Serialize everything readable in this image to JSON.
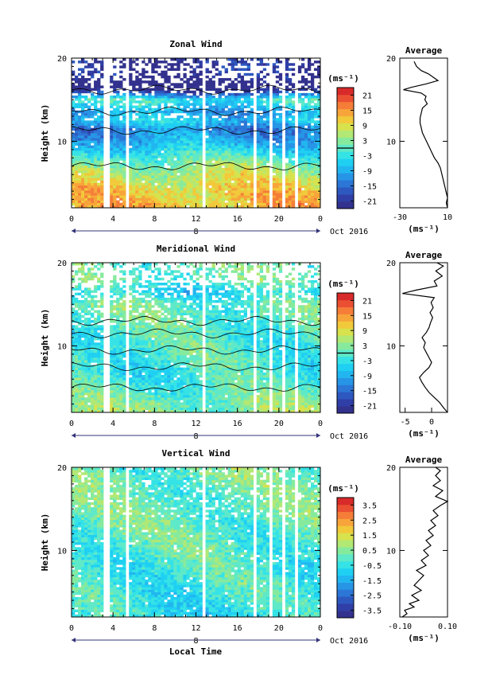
{
  "colors": {
    "jet": [
      "#32318e",
      "#2f3fa7",
      "#2d58bf",
      "#2b76d6",
      "#2795e6",
      "#21b6f0",
      "#1fd0f2",
      "#35e3e6",
      "#5ee9c8",
      "#86ea9d",
      "#b2e874",
      "#d7e24d",
      "#f1c93a",
      "#f7a53a",
      "#f57d38",
      "#ea4f32",
      "#d82a2a"
    ],
    "contour": "#000000",
    "axis_arrow": "#33337a"
  },
  "x_axis": {
    "ticks": [
      "0",
      "4",
      "8",
      "12",
      "16",
      "20",
      "0"
    ],
    "day_label": "8",
    "date_label": "Oct 2016",
    "label": "Local Time"
  },
  "chart_data": [
    {
      "type": "heatmap",
      "title": "Zonal Wind",
      "ylabel": "Height (km)",
      "yticks": [
        "20",
        "10"
      ],
      "ylim": [
        2,
        20
      ],
      "xlim": [
        0,
        24
      ],
      "unit_label": "(ms⁻¹)",
      "colorbar_ticks": [
        "21",
        "15",
        "9",
        "3",
        "-3",
        "-9",
        "-15",
        "-21"
      ],
      "colorbar_range": [
        -24,
        24
      ],
      "profile_title": "Average",
      "profile_xlabel": "(ms⁻¹)",
      "profile_xticks": [
        "-30",
        "10"
      ],
      "profile_xlim": [
        -30,
        10
      ],
      "profile_yticks": [
        "20",
        "10"
      ],
      "profile": [
        [
          10,
          2
        ],
        [
          9,
          2.6
        ],
        [
          10,
          3.2
        ],
        [
          9,
          3.8
        ],
        [
          8,
          4.4
        ],
        [
          7,
          5
        ],
        [
          6,
          5.6
        ],
        [
          5,
          6.2
        ],
        [
          4,
          6.8
        ],
        [
          2,
          7.4
        ],
        [
          -1,
          8
        ],
        [
          -3,
          8.6
        ],
        [
          -5,
          9.2
        ],
        [
          -7,
          9.8
        ],
        [
          -9,
          10.4
        ],
        [
          -11,
          11
        ],
        [
          -12,
          11.6
        ],
        [
          -13,
          12.2
        ],
        [
          -13,
          12.8
        ],
        [
          -12,
          13.4
        ],
        [
          -11,
          14
        ],
        [
          -7,
          14.5
        ],
        [
          -9,
          15
        ],
        [
          -8,
          15.4
        ],
        [
          -12,
          15.8
        ],
        [
          -27,
          16.2
        ],
        [
          -20,
          16.5
        ],
        [
          -8,
          16.9
        ],
        [
          2,
          17.3
        ],
        [
          -2,
          17.7
        ],
        [
          -6,
          18.1
        ],
        [
          -12,
          18.5
        ],
        [
          -16,
          19
        ],
        [
          -18,
          19.6
        ]
      ],
      "field": {
        "heights": [
          2.5,
          4,
          5.5,
          7,
          8.5,
          10,
          11.5,
          12.5,
          13.5,
          15,
          16.5,
          18
        ],
        "mean_profile": [
          12,
          11,
          8,
          4,
          -3,
          -9,
          -13,
          -6,
          -10,
          -2,
          -30,
          -22
        ],
        "valid_top_km": 20,
        "data_gaps_hours": [
          3.2,
          3.6,
          5.5,
          12.7,
          17.8,
          19.1,
          20.4,
          21.6
        ]
      }
    },
    {
      "type": "heatmap",
      "title": "Meridional Wind",
      "ylabel": "Height (km)",
      "yticks": [
        "20",
        "10"
      ],
      "ylim": [
        2,
        20
      ],
      "xlim": [
        0,
        24
      ],
      "unit_label": "(ms⁻¹)",
      "colorbar_ticks": [
        "21",
        "15",
        "9",
        "3",
        "-3",
        "-9",
        "-15",
        "-21"
      ],
      "colorbar_range": [
        -24,
        24
      ],
      "profile_title": "Average",
      "profile_xlabel": "(ms⁻¹)",
      "profile_xticks": [
        "-5",
        "0"
      ],
      "profile_xlim": [
        -6,
        3
      ],
      "profile_yticks": [
        "20",
        "10"
      ],
      "profile": [
        [
          3,
          2
        ],
        [
          2.2,
          2.6
        ],
        [
          1.5,
          3.2
        ],
        [
          0.5,
          3.8
        ],
        [
          -0.5,
          4.4
        ],
        [
          -1.2,
          5
        ],
        [
          -1.8,
          5.6
        ],
        [
          -2.3,
          6.2
        ],
        [
          -1.5,
          6.8
        ],
        [
          -0.5,
          7.4
        ],
        [
          0,
          8
        ],
        [
          -0.5,
          8.6
        ],
        [
          -1,
          9.2
        ],
        [
          -1.5,
          9.8
        ],
        [
          -1.2,
          10.4
        ],
        [
          -1.8,
          11
        ],
        [
          -1,
          11.6
        ],
        [
          -0.5,
          12.2
        ],
        [
          -0.2,
          12.8
        ],
        [
          0.2,
          13.4
        ],
        [
          -0.3,
          14
        ],
        [
          0.3,
          14.6
        ],
        [
          -0.1,
          15.2
        ],
        [
          0.5,
          15.8
        ],
        [
          -5.5,
          16.3
        ],
        [
          -3,
          16.7
        ],
        [
          1,
          17.2
        ],
        [
          0.5,
          17.8
        ],
        [
          2,
          18.4
        ],
        [
          0.8,
          19
        ],
        [
          2.2,
          19.6
        ],
        [
          1,
          20
        ]
      ],
      "field": {
        "heights": [
          2.5,
          4,
          5.5,
          7,
          8.5,
          10,
          11.5,
          12.5,
          13.5,
          15,
          16.5,
          18
        ],
        "mean_profile": [
          3,
          1,
          -1,
          -2,
          -1,
          -1,
          -1,
          0,
          0,
          1,
          -5,
          1
        ],
        "valid_top_km": 20,
        "data_gaps_hours": [
          3.2,
          3.6,
          5.5,
          12.7,
          17.8,
          19.1,
          20.4,
          21.6
        ]
      }
    },
    {
      "type": "heatmap",
      "title": "Vertical Wind",
      "ylabel": "Height (km)",
      "yticks": [
        "20",
        "10"
      ],
      "ylim": [
        2,
        20
      ],
      "xlim": [
        0,
        24
      ],
      "unit_label": "(ms⁻¹)",
      "colorbar_ticks": [
        "3.5",
        "2.5",
        "1.5",
        "0.5",
        "-0.5",
        "-1.5",
        "-2.5",
        "-3.5"
      ],
      "colorbar_range": [
        -4,
        4
      ],
      "profile_title": "Average",
      "profile_xlabel": "(ms⁻¹)",
      "profile_xticks": [
        "-0.10",
        "0.10"
      ],
      "profile_xlim": [
        -0.1,
        0.1
      ],
      "profile_yticks": [
        "20",
        "10"
      ],
      "profile": [
        [
          -0.09,
          2
        ],
        [
          -0.07,
          2.4
        ],
        [
          -0.08,
          2.8
        ],
        [
          -0.04,
          3.2
        ],
        [
          -0.06,
          3.6
        ],
        [
          -0.02,
          4
        ],
        [
          -0.05,
          4.6
        ],
        [
          -0.01,
          5.2
        ],
        [
          -0.04,
          5.8
        ],
        [
          -0.02,
          6.4
        ],
        [
          0.0,
          7
        ],
        [
          -0.03,
          7.6
        ],
        [
          0.01,
          8.2
        ],
        [
          -0.01,
          8.8
        ],
        [
          0.02,
          9.4
        ],
        [
          0.0,
          10
        ],
        [
          0.03,
          10.6
        ],
        [
          0.01,
          11.2
        ],
        [
          0.04,
          11.8
        ],
        [
          0.02,
          12.4
        ],
        [
          0.05,
          13
        ],
        [
          0.03,
          13.6
        ],
        [
          0.06,
          14.2
        ],
        [
          0.04,
          14.8
        ],
        [
          0.07,
          15.4
        ],
        [
          0.1,
          15.9
        ],
        [
          0.05,
          16.5
        ],
        [
          0.08,
          17.2
        ],
        [
          0.04,
          17.8
        ],
        [
          0.07,
          18.4
        ],
        [
          0.05,
          19
        ],
        [
          0.07,
          19.6
        ],
        [
          0.05,
          20
        ]
      ],
      "field": {
        "heights": [
          2.5,
          4,
          5.5,
          7,
          8.5,
          10,
          11.5,
          12.5,
          13.5,
          15,
          16.5,
          18
        ],
        "mean_profile": [
          -0.6,
          -0.4,
          -0.3,
          -0.3,
          -0.2,
          -0.1,
          0,
          0.1,
          0.1,
          0.2,
          0.1,
          0.2
        ],
        "valid_top_km": 20,
        "data_gaps_hours": [
          3.2,
          3.6,
          5.5,
          12.7,
          17.8,
          19.1,
          20.4,
          21.6
        ]
      }
    }
  ]
}
